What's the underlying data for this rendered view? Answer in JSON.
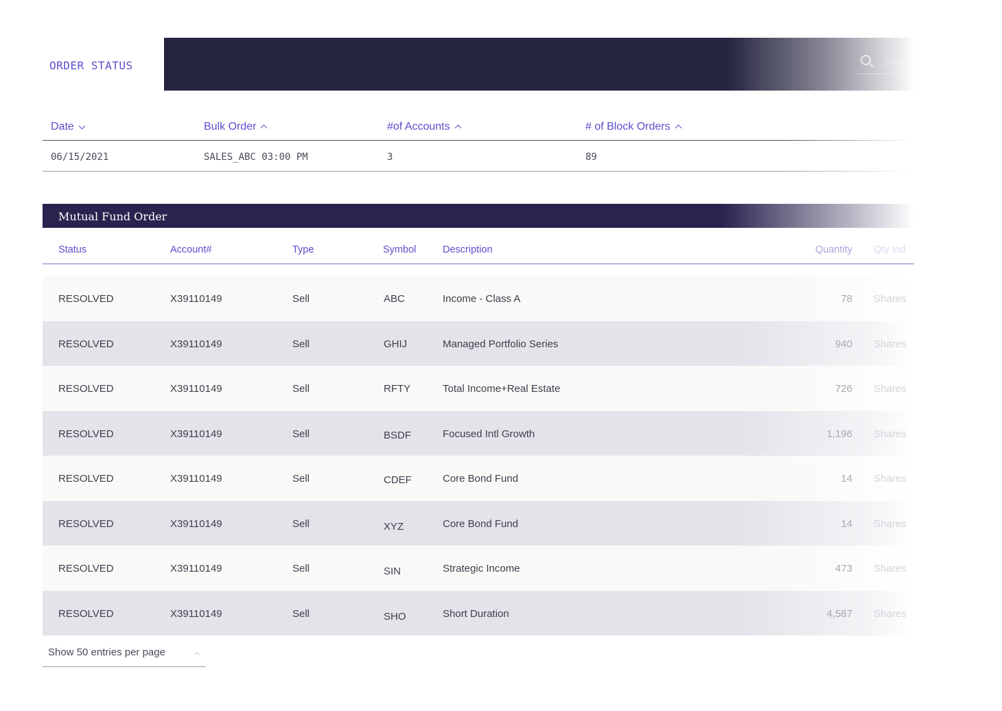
{
  "header": {
    "title": "ORDER STATUS",
    "search_placeholder": "Search"
  },
  "summary": {
    "columns": [
      {
        "label": "Date",
        "sort": "down"
      },
      {
        "label": "Bulk Order",
        "sort": "up"
      },
      {
        "label": "#of Accounts",
        "sort": "up"
      },
      {
        "label": "# of Block Orders",
        "sort": "up"
      }
    ],
    "row": {
      "date": "06/15/2021",
      "bulk_order": "SALES_ABC 03:00 PM",
      "accounts": "3",
      "block_orders": "89"
    }
  },
  "mutual_fund": {
    "title": "Mutual Fund Order",
    "columns": {
      "status": "Status",
      "account": "Account#",
      "type": "Type",
      "symbol": "Symbol",
      "description": "Description",
      "quantity": "Quantity",
      "qty_ind": "Qty Ind"
    },
    "rows": [
      {
        "status": "RESOLVED",
        "account": "X39110149",
        "type": "Sell",
        "symbol": "ABC",
        "description": "Income - Class A",
        "quantity": "78",
        "unit": "Shares"
      },
      {
        "status": "RESOLVED",
        "account": "X39110149",
        "type": "Sell",
        "symbol": "GHIJ",
        "description": "Managed Portfolio Series",
        "quantity": "940",
        "unit": "Shares"
      },
      {
        "status": "RESOLVED",
        "account": "X39110149",
        "type": "Sell",
        "symbol": "RFTY",
        "description": "Total Income+Real Estate",
        "quantity": "726",
        "unit": "Shares"
      },
      {
        "status": "RESOLVED",
        "account": "X39110149",
        "type": "Sell",
        "symbol": "BSDF",
        "description": "Focused Intl Growth",
        "quantity": "1,196",
        "unit": "Shares"
      },
      {
        "status": "RESOLVED",
        "account": "X39110149",
        "type": "Sell",
        "symbol": "CDEF",
        "description": "Core Bond Fund",
        "quantity": "14",
        "unit": "Shares"
      },
      {
        "status": "RESOLVED",
        "account": "X39110149",
        "type": "Sell",
        "symbol": "XYZ",
        "description": "Core Bond Fund",
        "quantity": "14",
        "unit": "Shares"
      },
      {
        "status": "RESOLVED",
        "account": "X39110149",
        "type": "Sell",
        "symbol": "SIN",
        "description": "Strategic Income",
        "quantity": "473",
        "unit": "Shares"
      },
      {
        "status": "RESOLVED",
        "account": "X39110149",
        "type": "Sell",
        "symbol": "SHO",
        "description": "Short Duration",
        "quantity": "4,587",
        "unit": "Shares"
      }
    ]
  },
  "footer": {
    "pager_label": "Show 50 entries per page"
  },
  "colors": {
    "accent": "#5a4fcf",
    "header_bar": "#262540",
    "section_bar": "#29234f"
  }
}
